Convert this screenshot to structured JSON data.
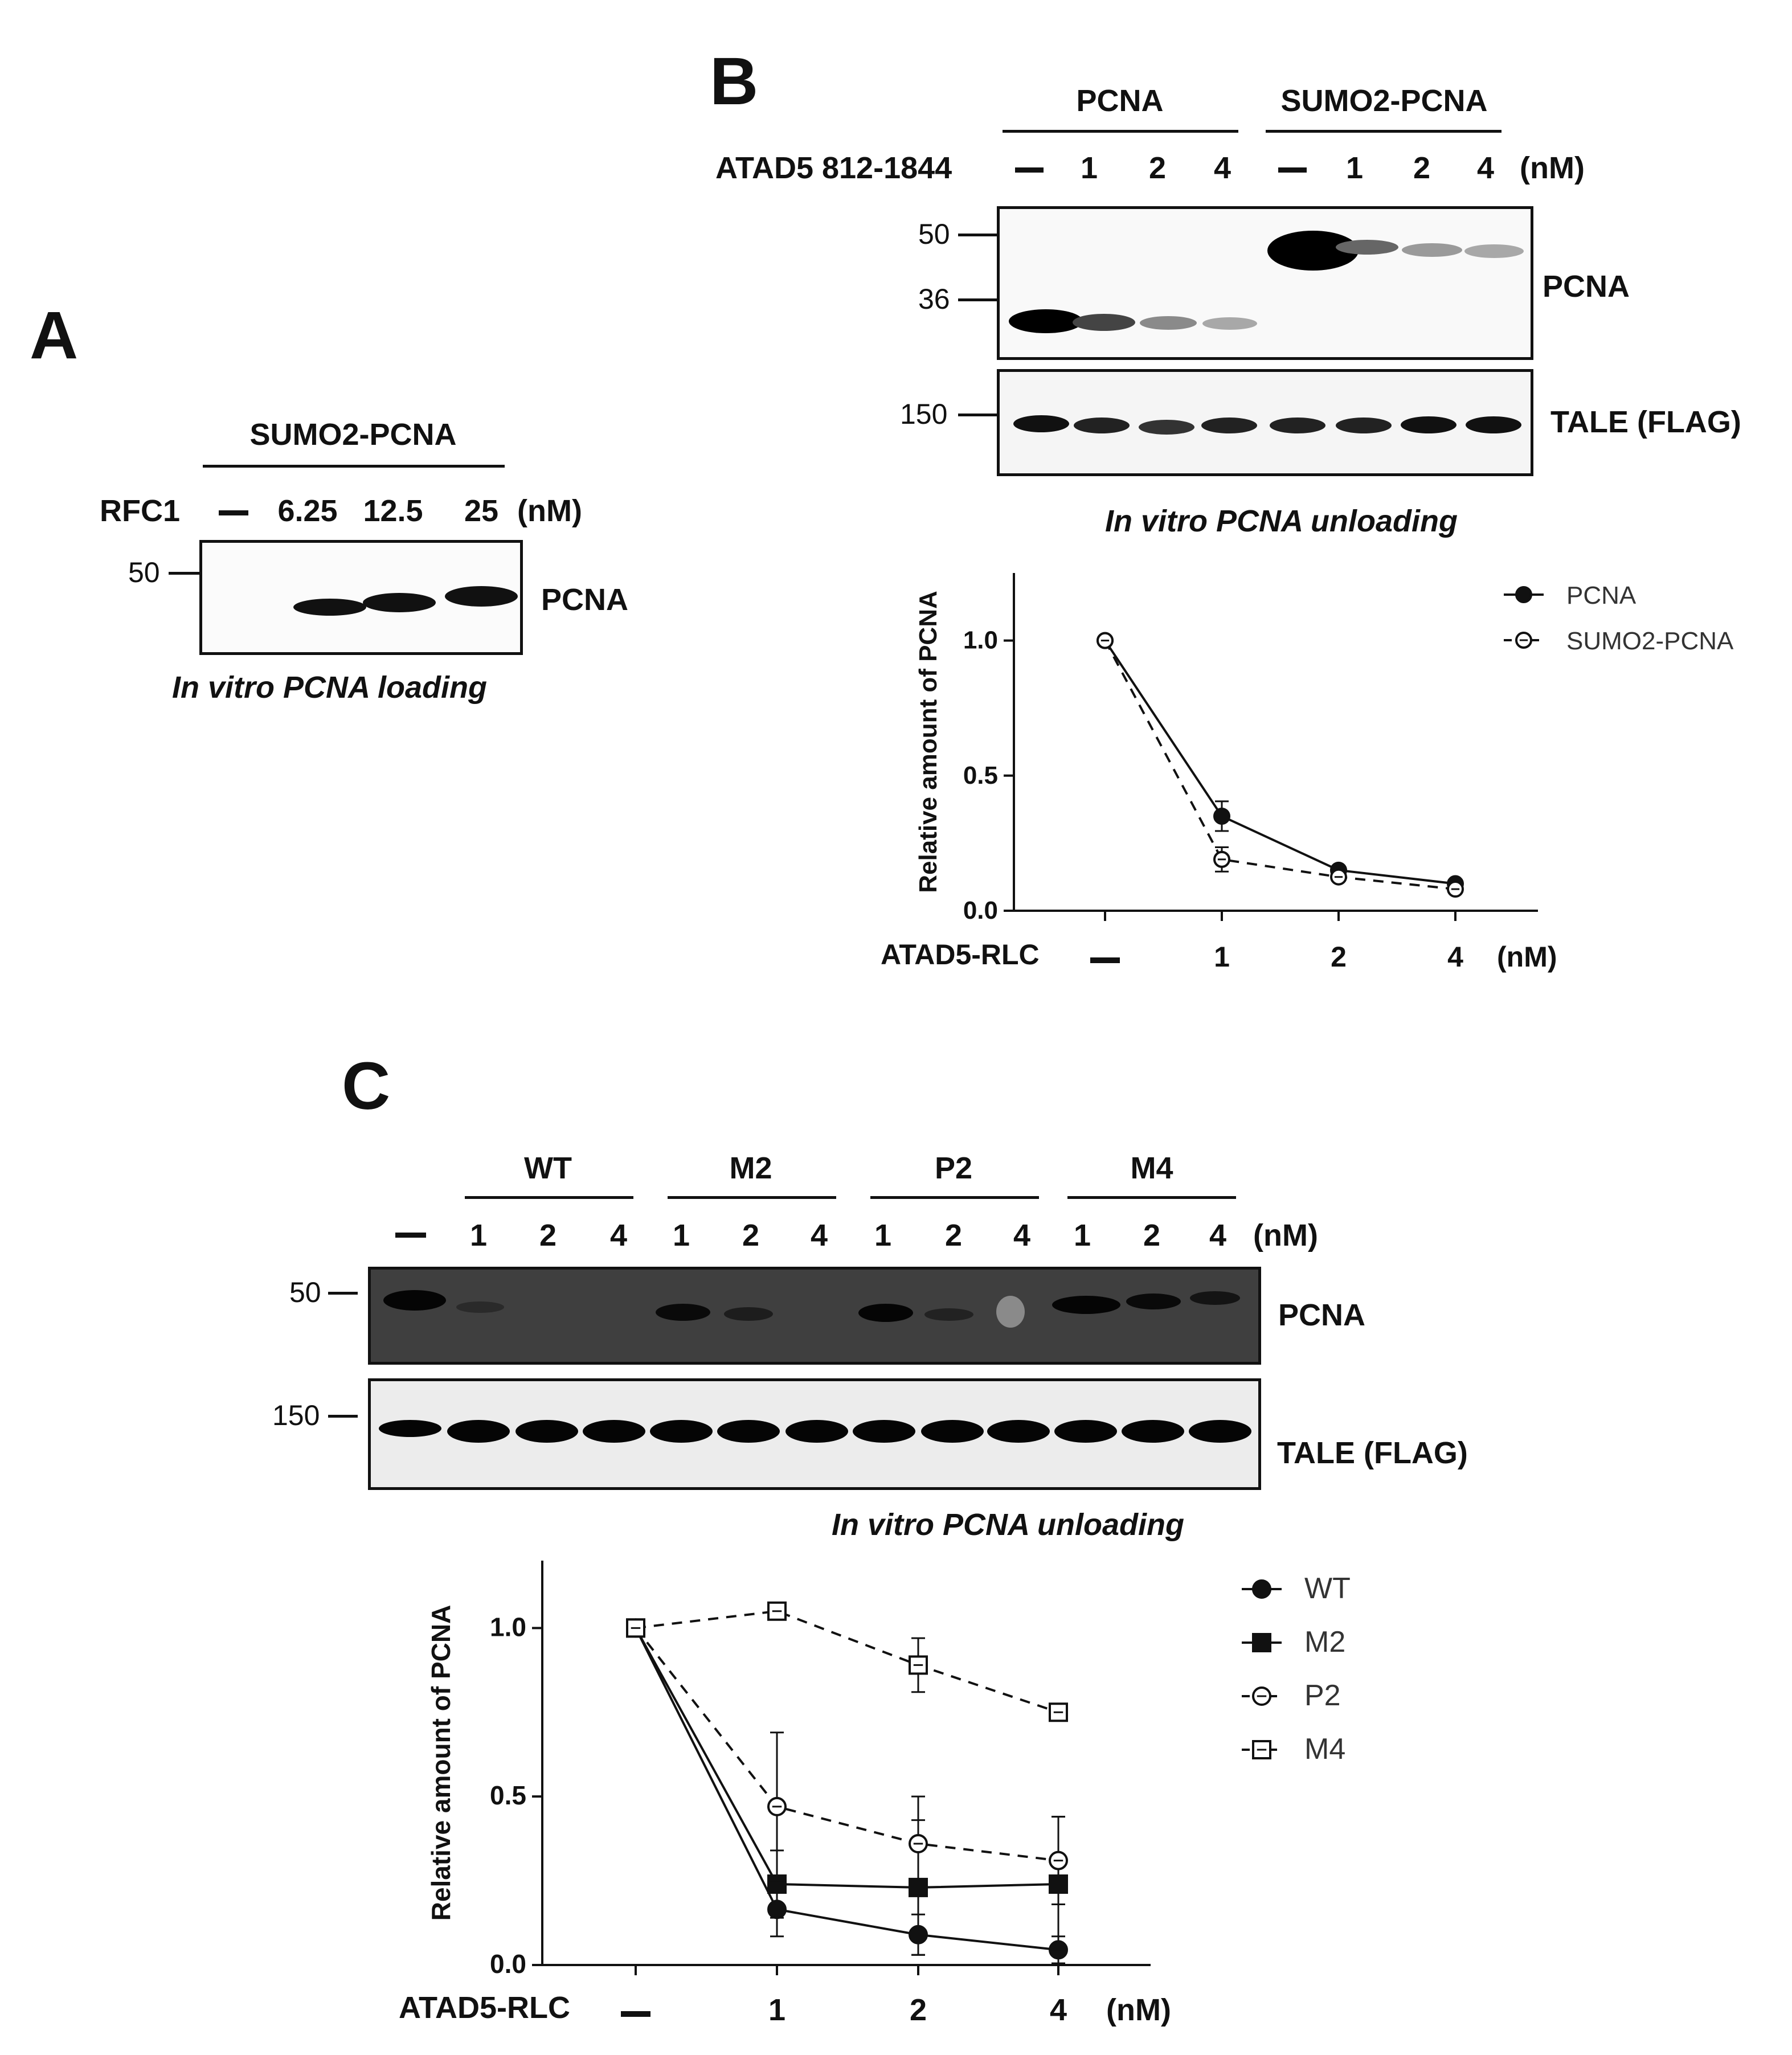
{
  "panelA": {
    "letter": "A",
    "group_label": "SUMO2-PCNA",
    "row_label": "RFC1",
    "lanes": [
      "6.25",
      "12.5",
      "25"
    ],
    "unit": "(nM)",
    "mw_marker": "50",
    "band_label": "PCNA",
    "caption": "In vitro PCNA loading"
  },
  "panelB": {
    "letter": "B",
    "groups": [
      "PCNA",
      "SUMO2-PCNA"
    ],
    "row_label": "ATAD5 812-1844",
    "lanes": [
      "1",
      "2",
      "4",
      "1",
      "2",
      "4"
    ],
    "unit": "(nM)",
    "mw_top": [
      "50",
      "36"
    ],
    "mw_bottom": "150",
    "band_label_top": "PCNA",
    "band_label_bottom": "TALE (FLAG)",
    "caption": "In vitro PCNA unloading"
  },
  "panelC": {
    "letter": "C",
    "groups": [
      "WT",
      "M2",
      "P2",
      "M4"
    ],
    "lanes": [
      "1",
      "2",
      "4",
      "1",
      "2",
      "4",
      "1",
      "2",
      "4",
      "1",
      "2",
      "4"
    ],
    "unit": "(nM)",
    "mw_top": "50",
    "mw_bottom": "150",
    "band_label_top": "PCNA",
    "band_label_bottom": "TALE (FLAG)",
    "caption": "In vitro PCNA unloading"
  },
  "chart_data": [
    {
      "type": "line",
      "panel": "B",
      "ylabel": "Relative amount of PCNA",
      "xlabel_left": "ATAD5-RLC",
      "x_unit": "(nM)",
      "categories": [
        "—",
        "1",
        "2",
        "4"
      ],
      "ylim": [
        0,
        1.25
      ],
      "yticks": [
        "0.0",
        "0.5",
        "1.0"
      ],
      "legend_position": "top-right",
      "series": [
        {
          "name": "PCNA",
          "marker": "filled-circle",
          "line": "solid",
          "values": [
            1.0,
            0.35,
            0.15,
            0.1
          ],
          "errors": [
            0,
            0.055,
            0.015,
            0.01
          ]
        },
        {
          "name": "SUMO2-PCNA",
          "marker": "open-circle",
          "line": "dashed",
          "values": [
            1.0,
            0.19,
            0.125,
            0.08
          ],
          "errors": [
            0,
            0.045,
            0.015,
            0.01
          ]
        }
      ]
    },
    {
      "type": "line",
      "panel": "C",
      "ylabel": "Relative amount of PCNA",
      "xlabel_left": "ATAD5-RLC",
      "x_unit": "(nM)",
      "categories": [
        "—",
        "1",
        "2",
        "4"
      ],
      "ylim": [
        0,
        1.2
      ],
      "yticks": [
        "0.0",
        "0.5",
        "1.0"
      ],
      "legend_position": "top-right",
      "series": [
        {
          "name": "WT",
          "marker": "filled-circle",
          "line": "solid",
          "values": [
            1.0,
            0.165,
            0.09,
            0.045
          ],
          "errors": [
            0,
            0.08,
            0.06,
            0.04
          ]
        },
        {
          "name": "M2",
          "marker": "filled-square",
          "line": "solid",
          "values": [
            1.0,
            0.24,
            0.23,
            0.24
          ],
          "errors": [
            0,
            0.1,
            0.2,
            0.2
          ]
        },
        {
          "name": "P2",
          "marker": "open-circle",
          "line": "dashed",
          "values": [
            1.0,
            0.47,
            0.36,
            0.31
          ],
          "errors": [
            0,
            0.22,
            0.14,
            0.13
          ]
        },
        {
          "name": "M4",
          "marker": "open-square",
          "line": "dashed",
          "values": [
            1.0,
            1.05,
            0.89,
            0.75
          ],
          "errors": [
            0,
            0.02,
            0.08,
            0.02
          ]
        }
      ]
    }
  ]
}
